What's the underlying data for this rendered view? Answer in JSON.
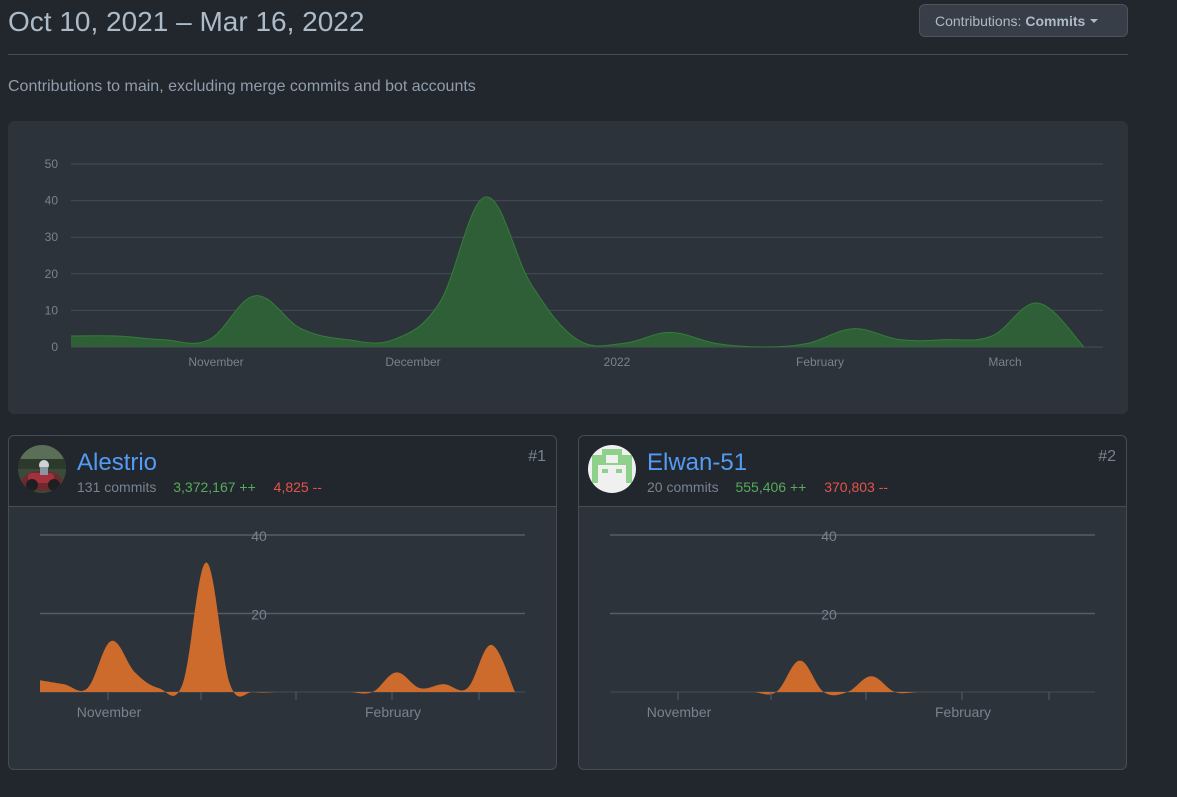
{
  "header": {
    "date_range": "Oct 10, 2021 – Mar 16, 2022",
    "contrib_prefix": "Contributions:",
    "contrib_selected": "Commits"
  },
  "subtitle": "Contributions to main, excluding merge commits and bot accounts",
  "colors": {
    "main_area": "#2f5f37",
    "main_stroke": "#347d39",
    "user_area": "#cc6b2c",
    "link": "#539bf5",
    "additions": "#57ab5a",
    "deletions": "#e5534b"
  },
  "chart_data": [
    {
      "type": "area",
      "x_ticks": [
        "November",
        "December",
        "2022",
        "February",
        "March"
      ],
      "y_ticks": [
        "0",
        "10",
        "20",
        "30",
        "40",
        "50"
      ],
      "ylim": [
        0,
        50
      ],
      "x": [
        "2021-10-10",
        "2021-10-17",
        "2021-10-24",
        "2021-10-31",
        "2021-11-07",
        "2021-11-14",
        "2021-11-21",
        "2021-11-28",
        "2021-12-05",
        "2021-12-12",
        "2021-12-19",
        "2021-12-26",
        "2022-01-02",
        "2022-01-09",
        "2022-01-16",
        "2022-01-23",
        "2022-01-30",
        "2022-02-06",
        "2022-02-13",
        "2022-02-20",
        "2022-02-27",
        "2022-03-06",
        "2022-03-13"
      ],
      "values": [
        3,
        3,
        2,
        2,
        14,
        5,
        2,
        2,
        12,
        41,
        17,
        2,
        1,
        4,
        1,
        0,
        1,
        5,
        2,
        2,
        3,
        12,
        0
      ],
      "grid": true
    },
    {
      "type": "area",
      "series_owner": "Alestrio",
      "x_ticks": [
        "November",
        "February"
      ],
      "y_ticks": [
        "20",
        "40"
      ],
      "ylim": [
        0,
        40
      ],
      "values": [
        3,
        2,
        1,
        13,
        5,
        1,
        2,
        33,
        2,
        0,
        0,
        0,
        0,
        0,
        0,
        5,
        1,
        2,
        1,
        12,
        0
      ],
      "grid": true
    },
    {
      "type": "area",
      "series_owner": "Elwan-51",
      "x_ticks": [
        "November",
        "February"
      ],
      "y_ticks": [
        "20",
        "40"
      ],
      "ylim": [
        0,
        40
      ],
      "values": [
        0,
        0,
        0,
        0,
        0,
        0,
        0,
        0,
        8,
        0,
        0,
        4,
        0,
        0,
        0,
        0,
        0,
        0,
        0,
        0,
        0
      ],
      "grid": true
    }
  ],
  "contributors": [
    {
      "name": "Alestrio",
      "commits": "131 commits",
      "additions": "3,372,167 ++",
      "deletions": "4,825 --",
      "rank": "#1"
    },
    {
      "name": "Elwan-51",
      "commits": "20 commits",
      "additions": "555,406 ++",
      "deletions": "370,803 --",
      "rank": "#2"
    }
  ]
}
